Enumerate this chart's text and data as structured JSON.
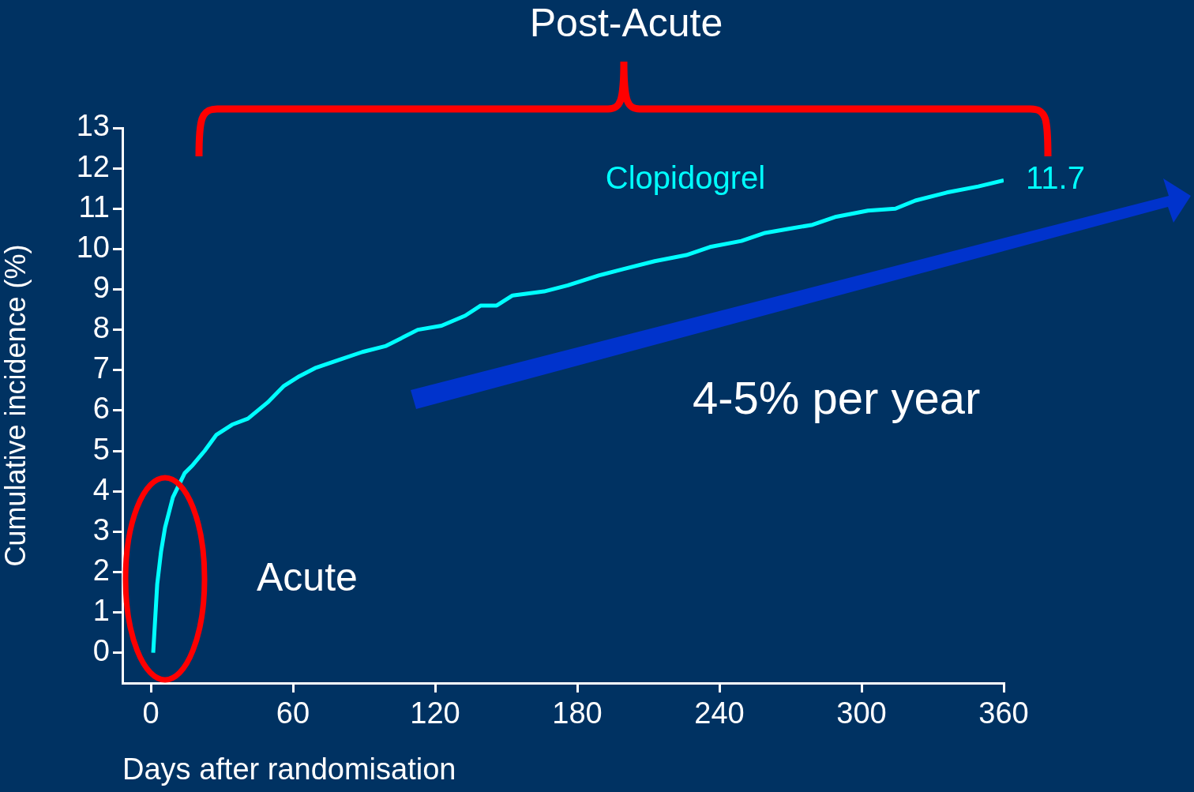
{
  "chart_data": {
    "type": "line",
    "xlabel": "Days after randomisation",
    "ylabel": "Cumulative incidence (%)",
    "xlim": [
      -12,
      360
    ],
    "xticks": [
      0,
      60,
      120,
      180,
      240,
      300,
      360
    ],
    "ylim": [
      -0.75,
      13
    ],
    "yticks": [
      0,
      1,
      2,
      3,
      4,
      5,
      6,
      7,
      8,
      9,
      10,
      11,
      12,
      13
    ],
    "grid": false,
    "legend": false,
    "marker": "none",
    "line_style": "solid",
    "series": [
      {
        "name": "Clopidogrel",
        "color": "#00ffff",
        "x": [
          1,
          1.7,
          2.7,
          4.3,
          6,
          9.3,
          14.3,
          17.7,
          22.7,
          27.7,
          34.3,
          41,
          49.3,
          56,
          62.7,
          69.3,
          79.3,
          89.3,
          99.3,
          106,
          112.7,
          122.7,
          132.7,
          139.3,
          146,
          152.7,
          166,
          176,
          189.3,
          199.3,
          212.7,
          226,
          236,
          249.3,
          259.3,
          269.3,
          279.3,
          289.3,
          302.7,
          314.3,
          322.7,
          336,
          349.3,
          360
        ],
        "values": [
          0,
          0.7,
          1.7,
          2.5,
          3.1,
          3.85,
          4.45,
          4.65,
          5.0,
          5.4,
          5.65,
          5.8,
          6.2,
          6.6,
          6.85,
          7.05,
          7.25,
          7.45,
          7.6,
          7.8,
          8.0,
          8.1,
          8.35,
          8.6,
          8.6,
          8.85,
          8.95,
          9.1,
          9.35,
          9.5,
          9.7,
          9.85,
          10.05,
          10.2,
          10.4,
          10.5,
          10.6,
          10.8,
          10.95,
          11.0,
          11.2,
          11.4,
          11.55,
          11.7
        ]
      }
    ],
    "annotations": [
      "Post-Acute",
      "Acute",
      "4-5% per year",
      {
        "text": "11.7",
        "x": 360,
        "y": 11.7
      }
    ]
  }
}
